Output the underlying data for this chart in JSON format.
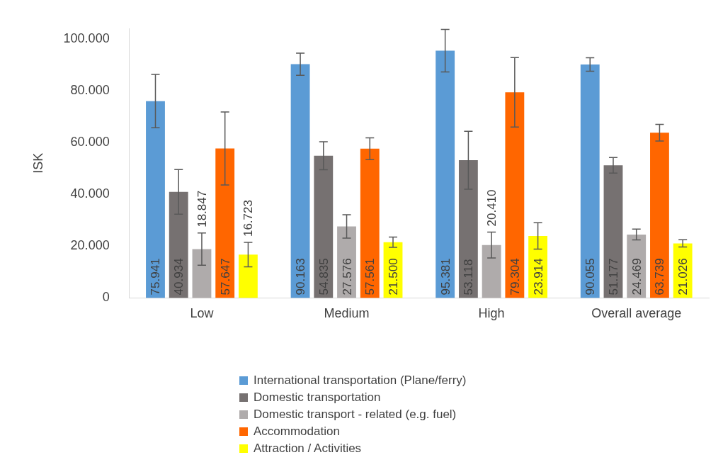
{
  "chart_data": {
    "type": "bar",
    "ylabel": "ISK",
    "categories": [
      "Low",
      "Medium",
      "High",
      "Overall average"
    ],
    "series": [
      {
        "name": "International transportation (Plane/ferry)",
        "color": "#5b9bd5",
        "values": [
          75941,
          90163,
          95381,
          90055
        ],
        "errors": [
          10300,
          4300,
          8200,
          2600
        ],
        "value_labels": [
          "75.941",
          "90.163",
          "95.381",
          "90.055"
        ]
      },
      {
        "name": "Domestic transportation",
        "color": "#767171",
        "values": [
          40934,
          54835,
          53118,
          51177
        ],
        "errors": [
          8600,
          5400,
          11200,
          3000
        ],
        "value_labels": [
          "40.934",
          "54.835",
          "53.118",
          "51.177"
        ]
      },
      {
        "name": "Domestic transport - related (e.g. fuel)",
        "color": "#afabab",
        "values": [
          18847,
          27576,
          20410,
          24469
        ],
        "errors": [
          6200,
          4500,
          5000,
          2100
        ],
        "value_labels": [
          "18.847",
          "27.576",
          "20.410",
          "24.469"
        ]
      },
      {
        "name": "Accommodation",
        "color": "#ff6600",
        "values": [
          57647,
          57561,
          79304,
          63739
        ],
        "errors": [
          14100,
          4200,
          13400,
          3200
        ],
        "value_labels": [
          "57.647",
          "57.561",
          "79.304",
          "63.739"
        ]
      },
      {
        "name": "Attraction / Activities",
        "color": "#ffff00",
        "values": [
          16723,
          21500,
          23914,
          21026
        ],
        "errors": [
          4700,
          2000,
          5100,
          1400
        ],
        "value_labels": [
          "16.723",
          "21.500",
          "23.914",
          "21.026"
        ]
      }
    ],
    "ylim": [
      0,
      104000
    ],
    "yticks": [
      {
        "value": 0,
        "label": "0"
      },
      {
        "value": 20000,
        "label": "20.000"
      },
      {
        "value": 40000,
        "label": "40.000"
      },
      {
        "value": 60000,
        "label": "60.000"
      },
      {
        "value": 80000,
        "label": "80.000"
      },
      {
        "value": 100000,
        "label": "100.000"
      }
    ],
    "grid": false,
    "legend": "bottom"
  }
}
